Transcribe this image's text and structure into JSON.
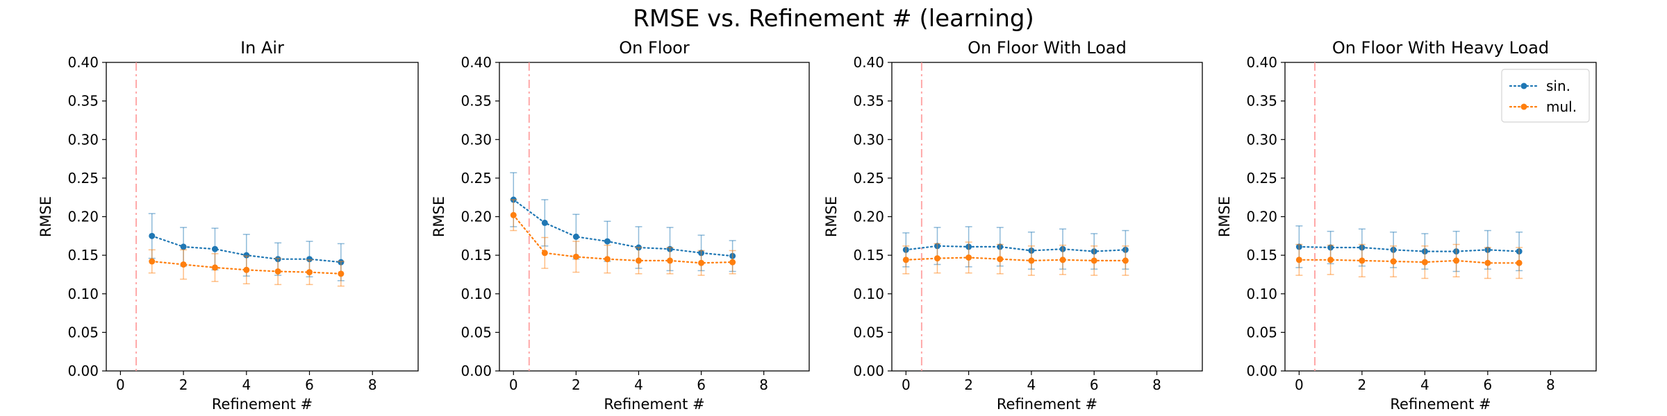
{
  "figure": {
    "suptitle": "RMSE vs. Refinement # (learning)"
  },
  "chart_data": [
    {
      "type": "line",
      "title": "In Air",
      "xlabel": "Refinement #",
      "ylabel": "RMSE",
      "xlim": [
        -0.45,
        9.45
      ],
      "ylim": [
        0.0,
        0.4
      ],
      "xticks": [
        0,
        2,
        4,
        6,
        8
      ],
      "yticks": [
        0.0,
        0.05,
        0.1,
        0.15,
        0.2,
        0.25,
        0.3,
        0.35,
        0.4
      ],
      "vline_x": 0.5,
      "grid": false,
      "legend": false,
      "series": [
        {
          "name": "sin.",
          "color": "#1f77b4",
          "x": [
            1,
            2,
            3,
            4,
            5,
            6,
            7
          ],
          "y": [
            0.175,
            0.161,
            0.158,
            0.15,
            0.145,
            0.145,
            0.141
          ],
          "yerr": [
            0.029,
            0.025,
            0.027,
            0.027,
            0.021,
            0.023,
            0.024
          ]
        },
        {
          "name": "mul.",
          "color": "#ff7f0e",
          "x": [
            1,
            2,
            3,
            4,
            5,
            6,
            7
          ],
          "y": [
            0.142,
            0.138,
            0.134,
            0.131,
            0.129,
            0.128,
            0.126
          ],
          "yerr": [
            0.015,
            0.019,
            0.018,
            0.018,
            0.017,
            0.016,
            0.016
          ]
        }
      ]
    },
    {
      "type": "line",
      "title": "On Floor",
      "xlabel": "Refinement #",
      "ylabel": "RMSE",
      "xlim": [
        -0.45,
        9.45
      ],
      "ylim": [
        0.0,
        0.4
      ],
      "xticks": [
        0,
        2,
        4,
        6,
        8
      ],
      "yticks": [
        0.0,
        0.05,
        0.1,
        0.15,
        0.2,
        0.25,
        0.3,
        0.35,
        0.4
      ],
      "vline_x": 0.5,
      "grid": false,
      "legend": false,
      "series": [
        {
          "name": "sin.",
          "color": "#1f77b4",
          "x": [
            0,
            1,
            2,
            3,
            4,
            5,
            6,
            7
          ],
          "y": [
            0.222,
            0.192,
            0.174,
            0.168,
            0.16,
            0.158,
            0.153,
            0.149
          ],
          "yerr": [
            0.035,
            0.03,
            0.029,
            0.026,
            0.027,
            0.028,
            0.023,
            0.02
          ]
        },
        {
          "name": "mul.",
          "color": "#ff7f0e",
          "x": [
            0,
            1,
            2,
            3,
            4,
            5,
            6,
            7
          ],
          "y": [
            0.202,
            0.153,
            0.148,
            0.145,
            0.143,
            0.143,
            0.14,
            0.141
          ],
          "yerr": [
            0.02,
            0.02,
            0.02,
            0.018,
            0.017,
            0.017,
            0.016,
            0.015
          ]
        }
      ]
    },
    {
      "type": "line",
      "title": "On Floor With Load",
      "xlabel": "Refinement #",
      "ylabel": "RMSE",
      "xlim": [
        -0.45,
        9.45
      ],
      "ylim": [
        0.0,
        0.4
      ],
      "xticks": [
        0,
        2,
        4,
        6,
        8
      ],
      "yticks": [
        0.0,
        0.05,
        0.1,
        0.15,
        0.2,
        0.25,
        0.3,
        0.35,
        0.4
      ],
      "vline_x": 0.5,
      "grid": false,
      "legend": false,
      "series": [
        {
          "name": "sin.",
          "color": "#1f77b4",
          "x": [
            0,
            1,
            2,
            3,
            4,
            5,
            6,
            7
          ],
          "y": [
            0.157,
            0.162,
            0.161,
            0.161,
            0.156,
            0.158,
            0.155,
            0.157
          ],
          "yerr": [
            0.022,
            0.024,
            0.026,
            0.025,
            0.024,
            0.026,
            0.023,
            0.025
          ]
        },
        {
          "name": "mul.",
          "color": "#ff7f0e",
          "x": [
            0,
            1,
            2,
            3,
            4,
            5,
            6,
            7
          ],
          "y": [
            0.144,
            0.146,
            0.147,
            0.145,
            0.143,
            0.144,
            0.143,
            0.143
          ],
          "yerr": [
            0.018,
            0.019,
            0.02,
            0.019,
            0.019,
            0.019,
            0.019,
            0.019
          ]
        }
      ]
    },
    {
      "type": "line",
      "title": "On Floor With Heavy Load",
      "xlabel": "Refinement #",
      "ylabel": "RMSE",
      "xlim": [
        -0.45,
        9.45
      ],
      "ylim": [
        0.0,
        0.4
      ],
      "xticks": [
        0,
        2,
        4,
        6,
        8
      ],
      "yticks": [
        0.0,
        0.05,
        0.1,
        0.15,
        0.2,
        0.25,
        0.3,
        0.35,
        0.4
      ],
      "vline_x": 0.5,
      "grid": false,
      "legend": true,
      "legend_position": "top-right",
      "series": [
        {
          "name": "sin.",
          "color": "#1f77b4",
          "x": [
            0,
            1,
            2,
            3,
            4,
            5,
            6,
            7
          ],
          "y": [
            0.161,
            0.16,
            0.16,
            0.157,
            0.155,
            0.155,
            0.157,
            0.155
          ],
          "yerr": [
            0.027,
            0.021,
            0.024,
            0.023,
            0.023,
            0.026,
            0.025,
            0.025
          ]
        },
        {
          "name": "mul.",
          "color": "#ff7f0e",
          "x": [
            0,
            1,
            2,
            3,
            4,
            5,
            6,
            7
          ],
          "y": [
            0.144,
            0.144,
            0.143,
            0.142,
            0.141,
            0.143,
            0.14,
            0.14
          ],
          "yerr": [
            0.02,
            0.019,
            0.021,
            0.02,
            0.021,
            0.021,
            0.02,
            0.02
          ]
        }
      ]
    }
  ]
}
